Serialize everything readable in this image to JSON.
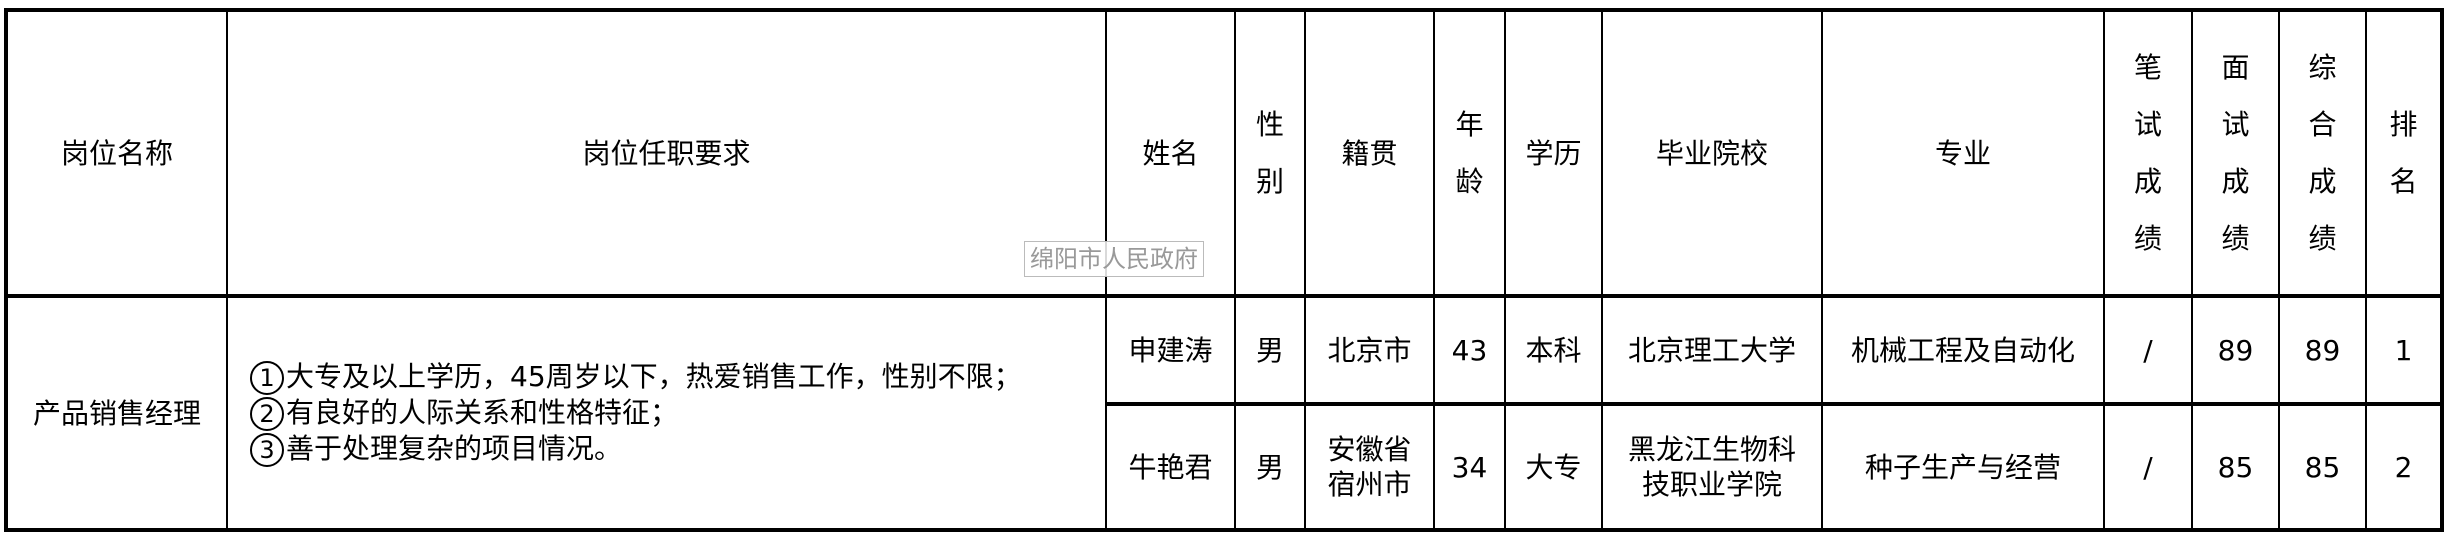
{
  "headers": {
    "position": "岗位名称",
    "requirements": "岗位任职要求",
    "name": "姓名",
    "gender": [
      "性",
      "别"
    ],
    "origin": "籍贯",
    "age": [
      "年",
      "龄"
    ],
    "education": "学历",
    "school": "毕业院校",
    "major": "专业",
    "written": [
      "笔",
      "试",
      "成",
      "绩"
    ],
    "interview": [
      "面",
      "试",
      "成",
      "绩"
    ],
    "total": [
      "综",
      "合",
      "成",
      "绩"
    ],
    "rank": [
      "排",
      "名"
    ]
  },
  "position": "产品销售经理",
  "requirements": [
    {
      "num": "1",
      "text": "大专及以上学历，45周岁以下，热爱销售工作，性别不限；"
    },
    {
      "num": "2",
      "text": "有良好的人际关系和性格特征；"
    },
    {
      "num": "3",
      "text": "善于处理复杂的项目情况。"
    }
  ],
  "rows": [
    {
      "name": "申建涛",
      "gender": "男",
      "origin": [
        "北京市"
      ],
      "age": "43",
      "education": "本科",
      "school": [
        "北京理工大学"
      ],
      "major": "机械工程及自动化",
      "written": "/",
      "interview": "89",
      "total": "89",
      "rank": "1"
    },
    {
      "name": "牛艳君",
      "gender": "男",
      "origin": [
        "安徽省",
        "宿州市"
      ],
      "age": "34",
      "education": "大专",
      "school": [
        "黑龙江生物科",
        "技职业学院"
      ],
      "major": "种子生产与经营",
      "written": "/",
      "interview": "85",
      "total": "85",
      "rank": "2"
    }
  ],
  "watermark": "绵阳市人民政府"
}
